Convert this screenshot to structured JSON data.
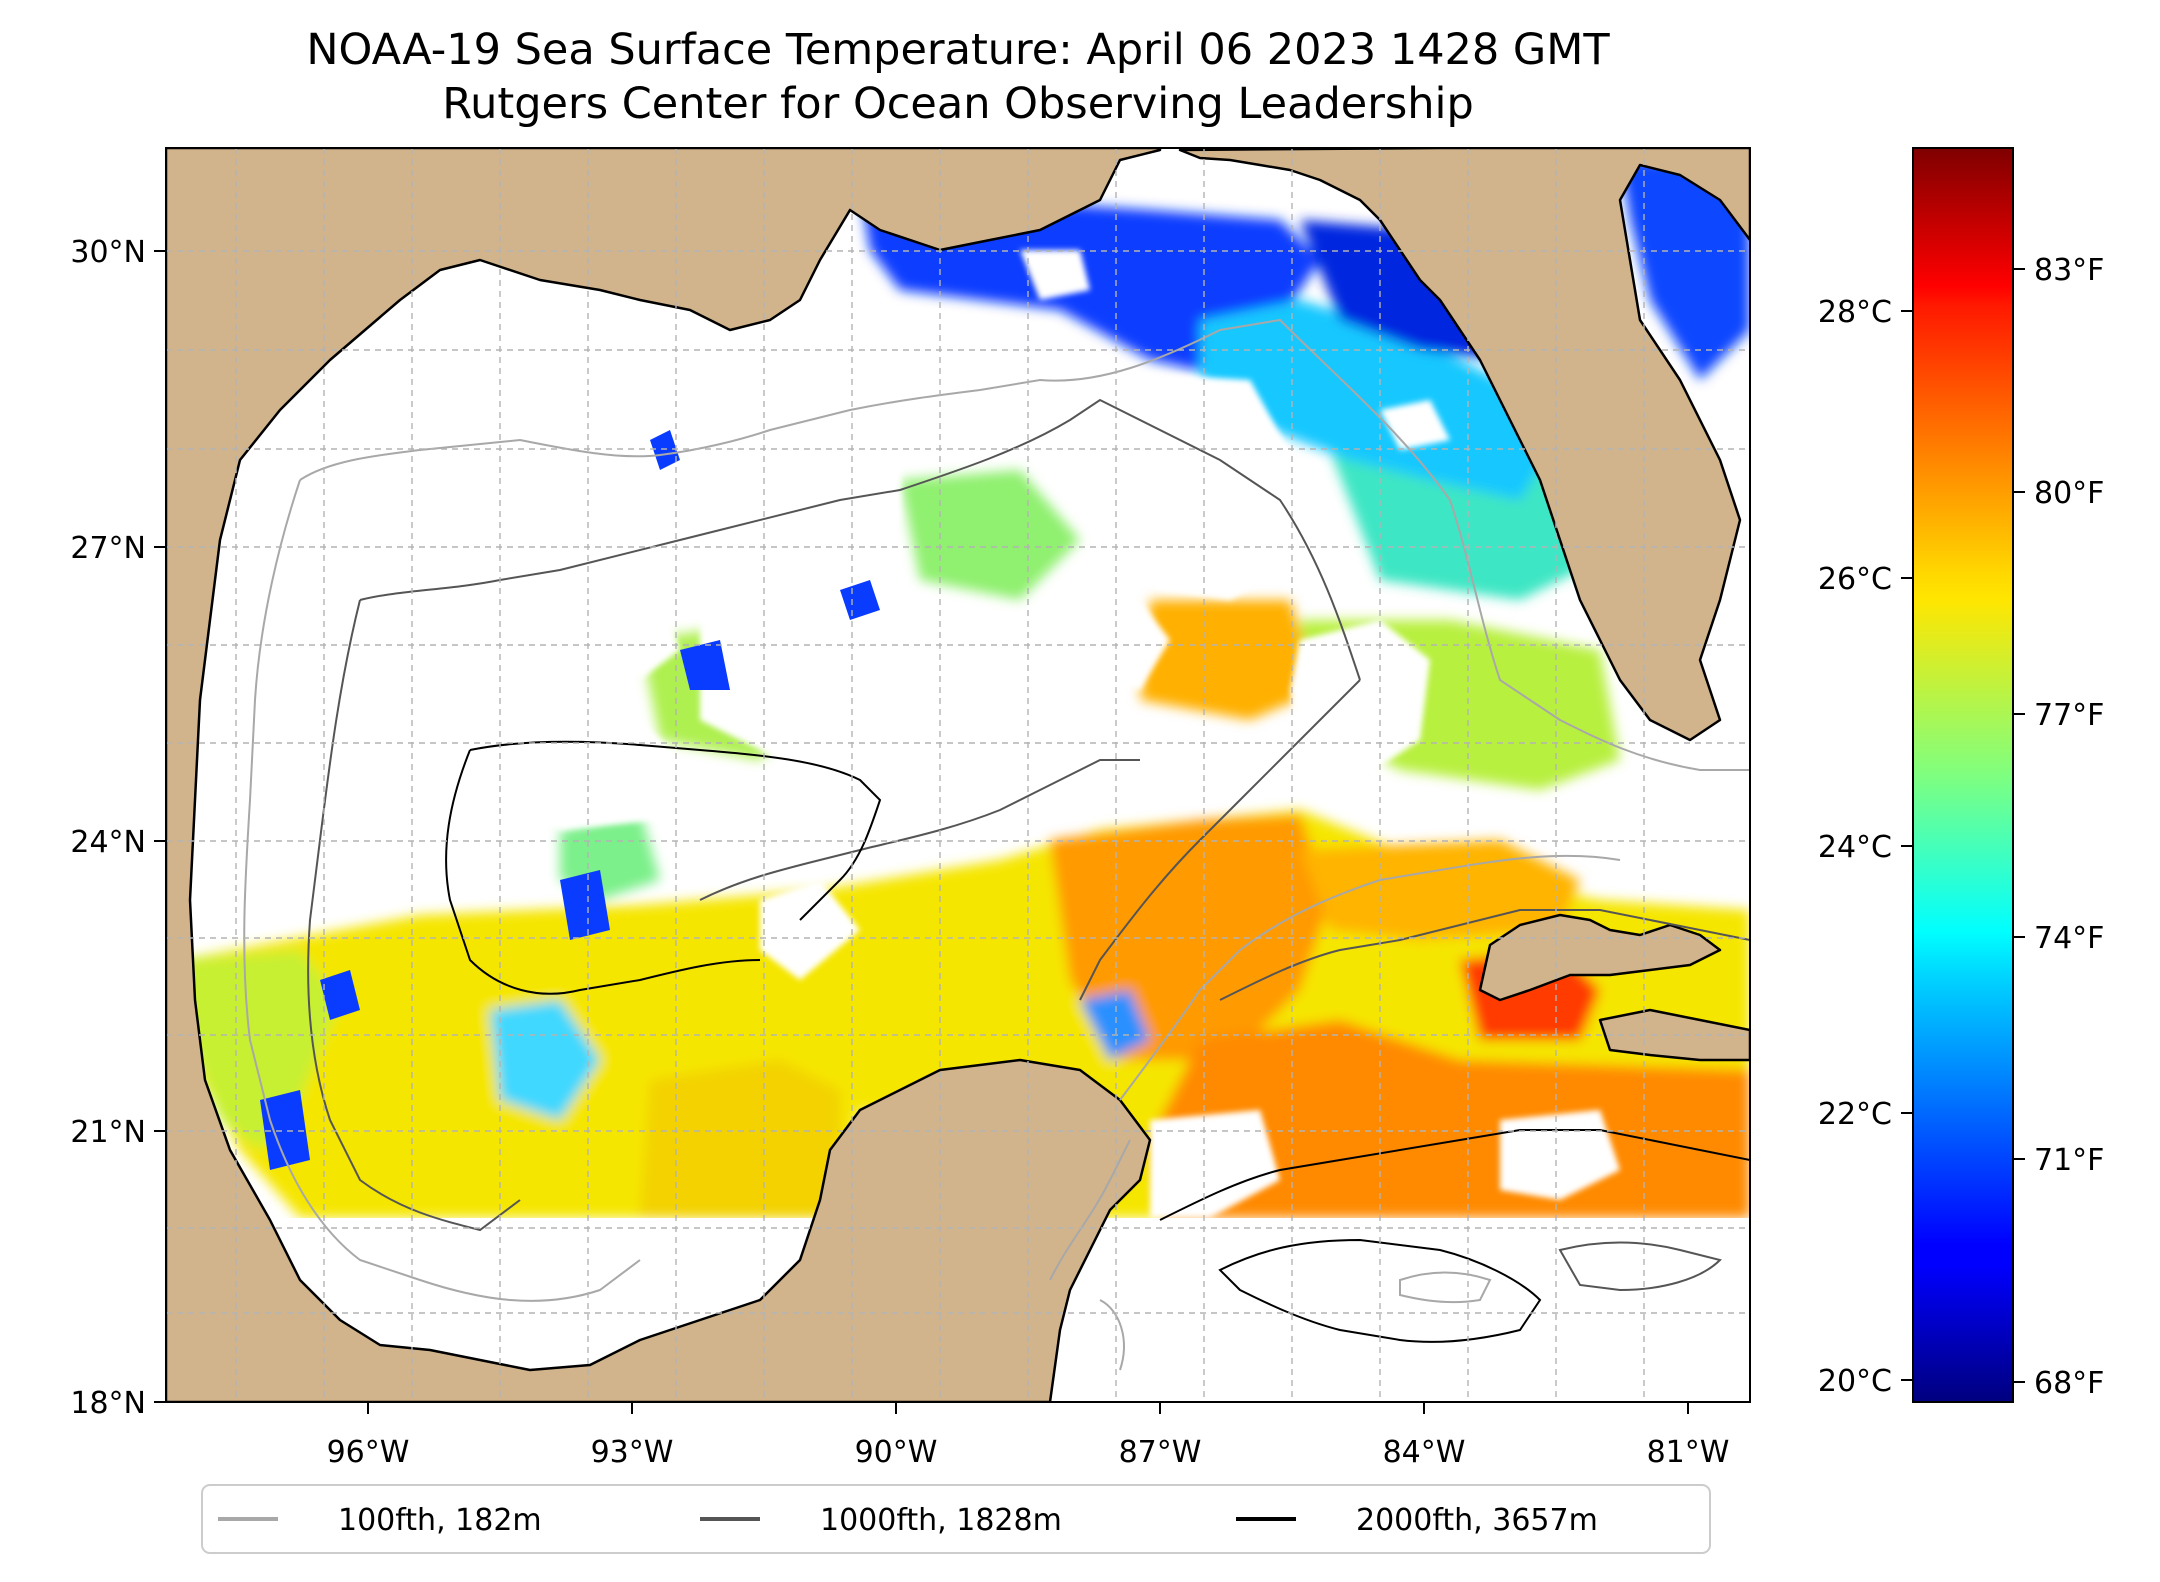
{
  "title": {
    "line1": "NOAA-19 Sea Surface Temperature: April 06 2023 1428 GMT",
    "line2": "Rutgers Center for Ocean Observing Leadership"
  },
  "map": {
    "lat_ticks": [
      "30°N",
      "27°N",
      "24°N",
      "21°N",
      "18°N"
    ],
    "lon_ticks": [
      "96°W",
      "93°W",
      "90°W",
      "87°W",
      "84°W",
      "81°W"
    ],
    "land_color": "#d2b48c",
    "no_data_color": "#ffffff",
    "gridlines": true
  },
  "colorbar": {
    "colormap": "jet",
    "celsius_ticks": [
      "28°C",
      "26°C",
      "24°C",
      "22°C",
      "20°C"
    ],
    "fahrenheit_ticks": [
      "83°F",
      "80°F",
      "77°F",
      "74°F",
      "71°F",
      "68°F"
    ]
  },
  "legend": {
    "placement": "bottom-center",
    "entries": [
      {
        "label": "100fth, 182m",
        "color": "#a8a8a8"
      },
      {
        "label": "1000fth, 1828m",
        "color": "#555555"
      },
      {
        "label": "2000fth, 3657m",
        "color": "#000000"
      }
    ]
  }
}
